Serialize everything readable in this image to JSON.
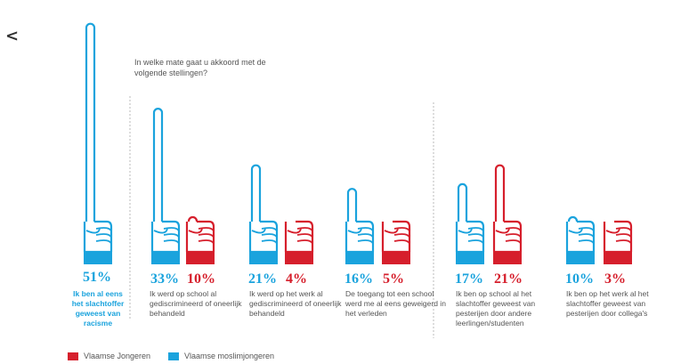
{
  "nav": {
    "back_label": "<"
  },
  "question": "In welke mate gaat u akkoord met de volgende stellingen?",
  "colors": {
    "blue": "#1aa3dd",
    "red": "#d61f2c"
  },
  "legend": [
    {
      "name": "Vlaamse Jongeren",
      "color": "#d61f2c"
    },
    {
      "name": "Vlaamse moslimjongeren",
      "color": "#1aa3dd"
    }
  ],
  "chart_data": {
    "type": "bar",
    "unit": "%",
    "categories": [
      "Ik ben al eens het slachtoffer geweest van racisme",
      "Ik werd op school al gediscrimineerd of oneerlijk behandeld",
      "Ik werd op het werk al gediscrimineerd of oneerlijk behandeld",
      "De toegang tot een school werd me al eens geweigerd in het verleden",
      "Ik ben op school al het slachtoffer geweest van pesterijen door andere leerlingen/studenten",
      "Ik ben op het werk al het slachtoffer geweest van pesterijen door collega's"
    ],
    "series": [
      {
        "name": "Vlaamse moslimjongeren",
        "values": [
          51,
          33,
          21,
          16,
          17,
          10
        ],
        "labels": [
          "51%",
          "33%",
          "21%",
          "16%",
          "17%",
          "10%"
        ]
      },
      {
        "name": "Vlaamse Jongeren",
        "values": [
          null,
          10,
          4,
          5,
          21,
          3
        ],
        "labels": [
          "",
          "10%",
          "4%",
          "5%",
          "21%",
          "3%"
        ]
      }
    ]
  }
}
